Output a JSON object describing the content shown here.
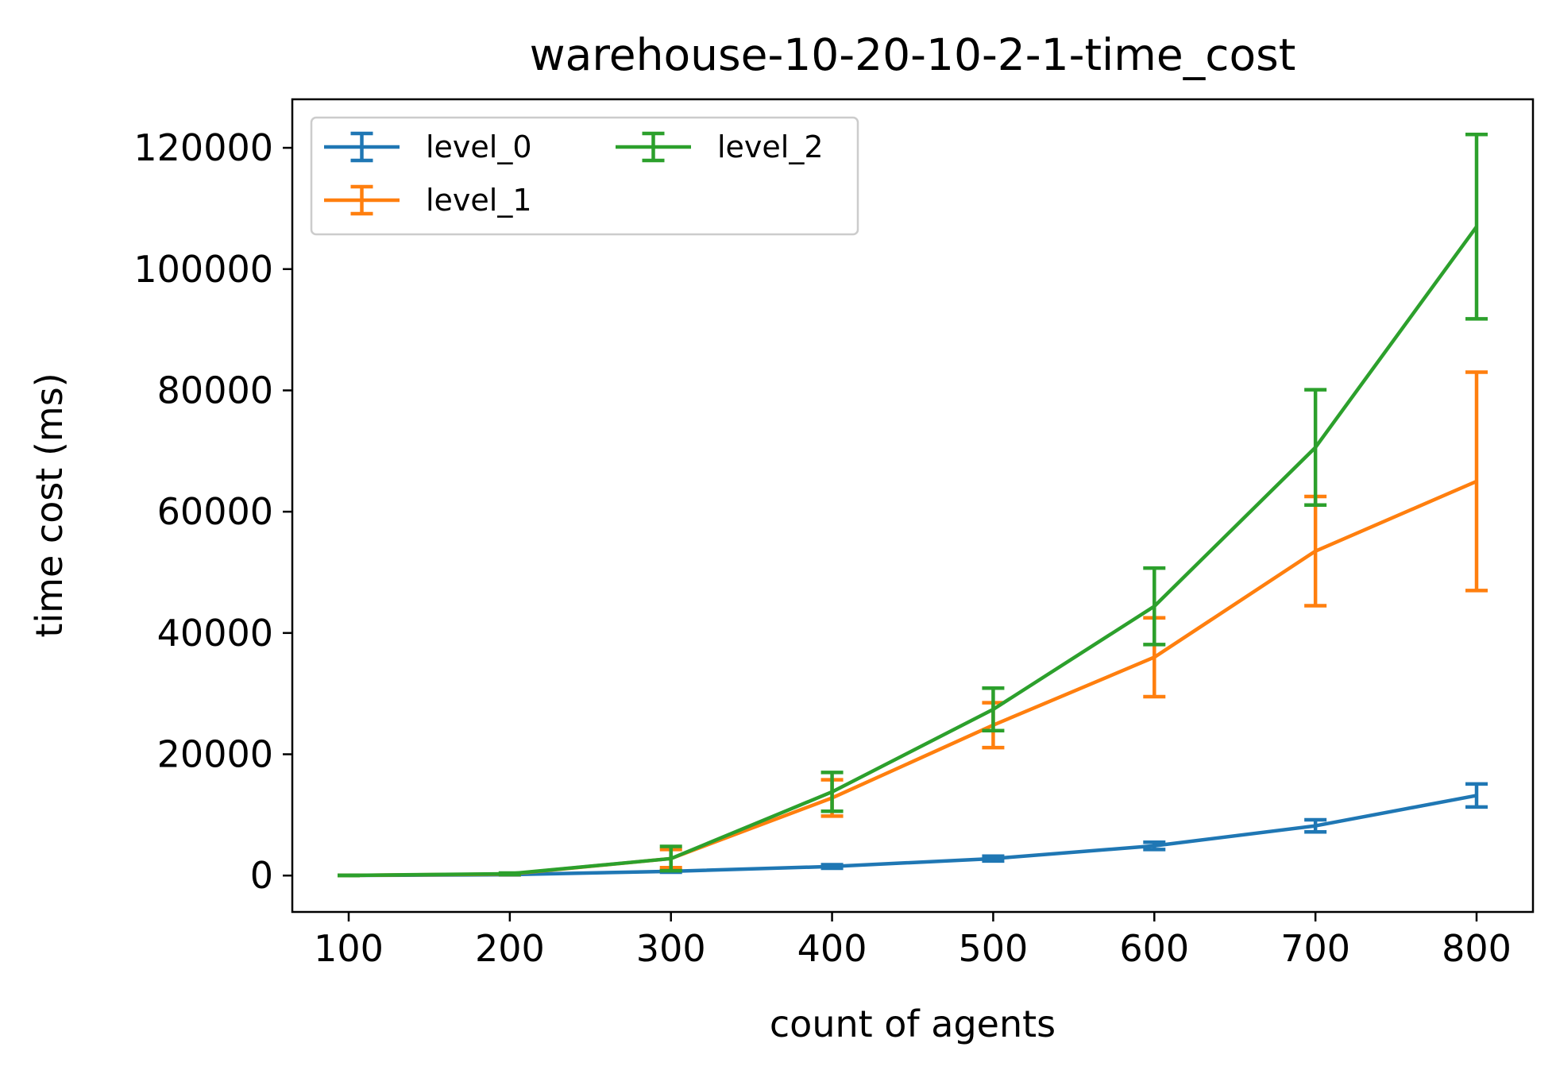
{
  "chart_data": {
    "type": "line",
    "title": "warehouse-10-20-10-2-1-time_cost",
    "xlabel": "count of agents",
    "ylabel": "time cost (ms)",
    "x": [
      100,
      200,
      300,
      400,
      500,
      600,
      700,
      800
    ],
    "xlim": [
      65,
      835
    ],
    "ylim": [
      -6000,
      128000
    ],
    "xticks": [
      100,
      200,
      300,
      400,
      500,
      600,
      700,
      800
    ],
    "yticks": [
      0,
      20000,
      40000,
      60000,
      80000,
      100000,
      120000
    ],
    "grid": false,
    "legend_position": "top-left",
    "legend_columns": 2,
    "series": [
      {
        "name": "level_0",
        "color": "#1f77b4",
        "values": [
          20,
          150,
          700,
          1500,
          2800,
          4900,
          8200,
          13200
        ],
        "errors": [
          10,
          50,
          150,
          300,
          400,
          600,
          1000,
          1900
        ]
      },
      {
        "name": "level_1",
        "color": "#ff7f0e",
        "values": [
          30,
          250,
          2800,
          12800,
          24800,
          36000,
          53500,
          65000
        ],
        "errors": [
          15,
          100,
          1500,
          3000,
          3700,
          6500,
          9000,
          18000
        ]
      },
      {
        "name": "level_2",
        "color": "#2ca02c",
        "values": [
          30,
          300,
          2800,
          13800,
          27400,
          44400,
          70600,
          107000
        ],
        "errors": [
          15,
          120,
          2000,
          3200,
          3500,
          6300,
          9500,
          15200
        ]
      }
    ]
  }
}
